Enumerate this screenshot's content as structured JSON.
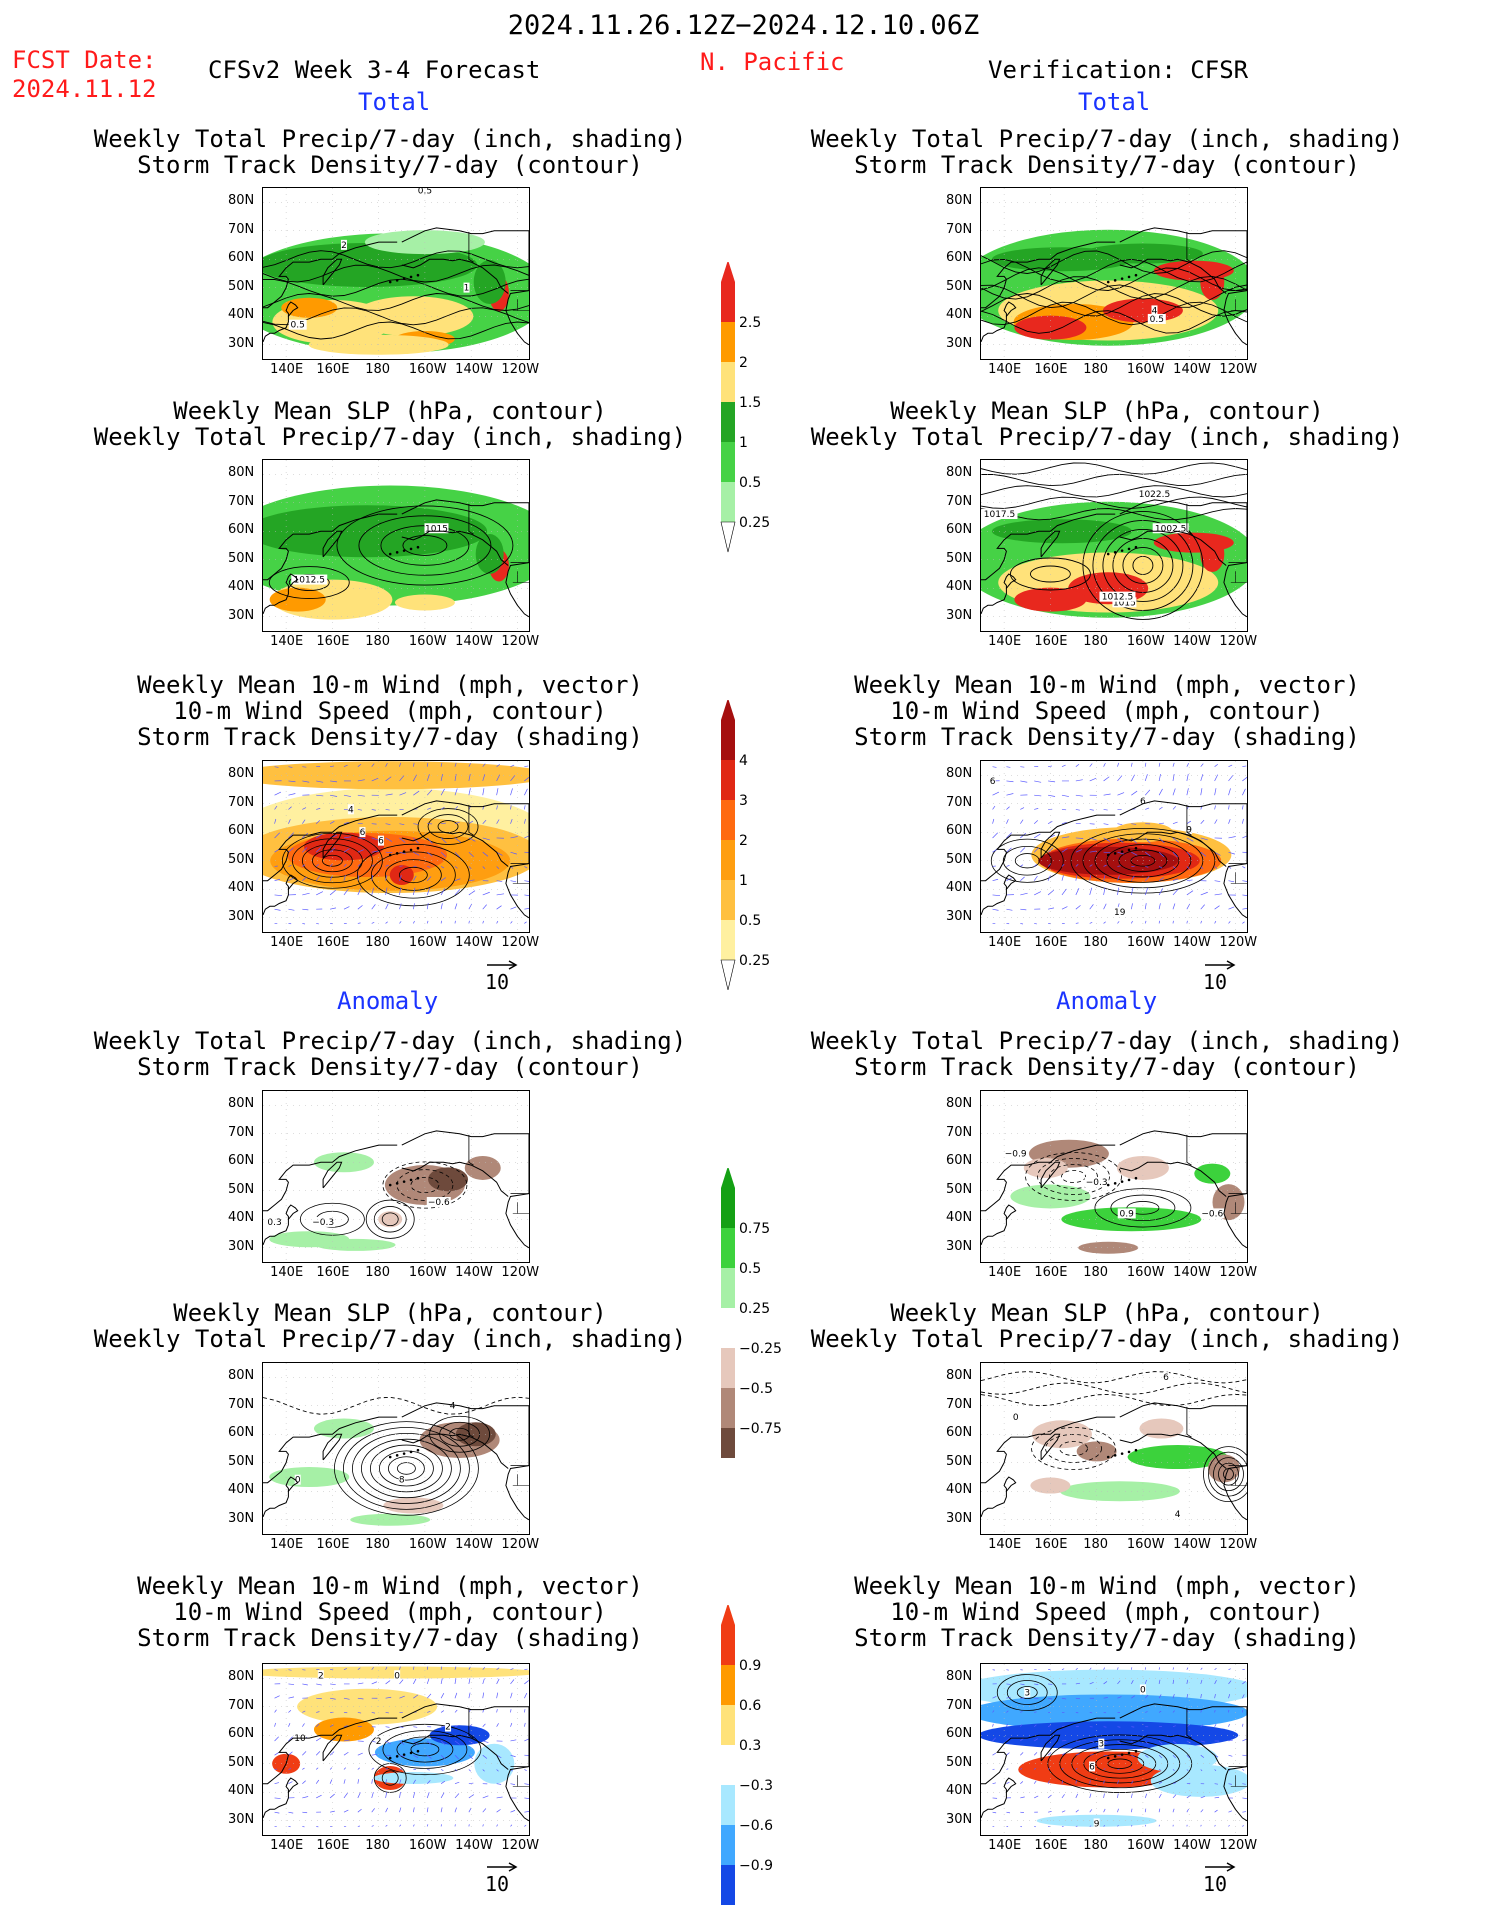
{
  "header": {
    "period": "2024.11.26.12Z−2024.12.10.06Z",
    "fcst_label": "FCST Date:",
    "fcst_date": "2024.11.12",
    "model": "CFSv2 Week 3-4 Forecast",
    "region": "N. Pacific",
    "verification": "Verification: CFSR"
  },
  "section_labels": {
    "total": "Total",
    "anomaly": "Anomaly"
  },
  "panel_titles": {
    "precip_storm": [
      "Weekly Total Precip/7-day (inch, shading)",
      "Storm Track Density/7-day (contour)"
    ],
    "slp_precip": [
      "Weekly Mean SLP (hPa, contour)",
      "Weekly Total Precip/7-day (inch, shading)"
    ],
    "wind_storm": [
      "Weekly Mean 10-m Wind (mph, vector)",
      "10-m Wind Speed (mph, contour)",
      "Storm Track Density/7-day (shading)"
    ]
  },
  "axes": {
    "lat_labels": [
      "80N",
      "70N",
      "60N",
      "50N",
      "40N",
      "30N"
    ],
    "lon_labels": [
      "140E",
      "160E",
      "180",
      "160W",
      "140W",
      "120W"
    ]
  },
  "vector_reference": "10",
  "colorbars": {
    "precip_total": {
      "labels": [
        "2.5",
        "2",
        "1.5",
        "1",
        "0.5",
        "0.25"
      ],
      "colors": [
        "#e8281e",
        "#ff9a00",
        "#ffe27a",
        "#24a524",
        "#46d246",
        "#a6f0a6"
      ]
    },
    "storm_total": {
      "labels": [
        "4",
        "3",
        "2",
        "1",
        "0.5",
        "0.25"
      ],
      "colors": [
        "#a50f0f",
        "#e02814",
        "#ff6a10",
        "#ff9e10",
        "#ffc040",
        "#fff0a0"
      ]
    },
    "precip_anom": {
      "labels": [
        "0.75",
        "0.5",
        "0.25",
        "−0.25",
        "−0.5",
        "−0.75"
      ],
      "colors": [
        "#14a014",
        "#3cd23c",
        "#a6f0a6",
        "#ffffff",
        "#e6c8bc",
        "#b08878",
        "#6e4a3c"
      ]
    },
    "storm_anom": {
      "labels": [
        "0.9",
        "0.6",
        "0.3",
        "−0.3",
        "−0.6",
        "−0.9"
      ],
      "colors": [
        "#f03c14",
        "#ff9a00",
        "#ffe27a",
        "#ffffff",
        "#a8e8ff",
        "#40a8ff",
        "#1448e6"
      ]
    }
  },
  "contour_labels": {
    "p1": [
      "0.5",
      "2",
      "1",
      "0.5"
    ],
    "p2": [
      "1015",
      "1012.5"
    ],
    "p3": [
      "4",
      "6",
      "6"
    ],
    "p4": [
      "4",
      "0.5"
    ],
    "p5": [
      "1022.5",
      "1017.5",
      "1002.5",
      "1015",
      "1012.5"
    ],
    "p6": [
      "6",
      "9",
      "19",
      "6"
    ],
    "p7": [
      "0.3",
      "−0.3",
      "−0.6"
    ],
    "p8": [
      "−0.9",
      "−0.3",
      "0.9",
      "−0.6"
    ],
    "p9": [
      "4",
      "0",
      "8"
    ],
    "p10": [
      "0",
      "6",
      "4"
    ],
    "p11": [
      "2",
      "0",
      "10",
      "2",
      "2"
    ],
    "p12": [
      "3",
      "0",
      "3",
      "6",
      "9"
    ]
  }
}
